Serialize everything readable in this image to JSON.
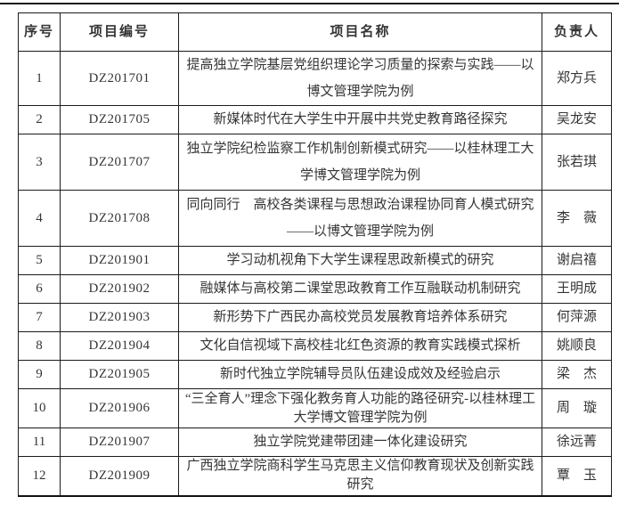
{
  "table": {
    "columns": {
      "no": "序号",
      "code": "项目编号",
      "title": "项目名称",
      "leader": "负责人"
    },
    "rows": [
      {
        "no": "1",
        "code": "DZ201701",
        "title": "提高独立学院基层党组织理论学习质量的探索与实践——以博文管理学院为例",
        "leader": "郑方兵"
      },
      {
        "no": "2",
        "code": "DZ201705",
        "title": "新媒体时代在大学生中开展中共党史教育路径探究",
        "leader": "吴龙安"
      },
      {
        "no": "3",
        "code": "DZ201707",
        "title": "独立学院纪检监察工作机制创新模式研究——以桂林理工大学博文管理学院为例",
        "leader": "张若琪"
      },
      {
        "no": "4",
        "code": "DZ201708",
        "title": "同向同行　高校各类课程与思想政治课程协同育人模式研究——以博文管理学院为例",
        "leader": "李　薇"
      },
      {
        "no": "5",
        "code": "DZ201901",
        "title": "学习动机视角下大学生课程思政新模式的研究",
        "leader": "谢启禧"
      },
      {
        "no": "6",
        "code": "DZ201902",
        "title": "融媒体与高校第二课堂思政教育工作互融联动机制研究",
        "leader": "王明成"
      },
      {
        "no": "7",
        "code": "DZ201903",
        "title": "新形势下广西民办高校党员发展教育培养体系研究",
        "leader": "何萍源"
      },
      {
        "no": "8",
        "code": "DZ201904",
        "title": "文化自信视域下高校桂北红色资源的教育实践模式探析",
        "leader": "姚顺良"
      },
      {
        "no": "9",
        "code": "DZ201905",
        "title": "新时代独立学院辅导员队伍建设成效及经验启示",
        "leader": "梁　杰"
      },
      {
        "no": "10",
        "code": "DZ201906",
        "title": "“三全育人”理念下强化教务育人功能的路径研究-以桂林理工大学博文管理学院为例",
        "leader": "周　璇"
      },
      {
        "no": "11",
        "code": "DZ201907",
        "title": "独立学院党建带团建一体化建设研究",
        "leader": "徐远菁"
      },
      {
        "no": "12",
        "code": "DZ201909",
        "title": "广西独立学院商科学生马克思主义信仰教育现状及创新实践研究",
        "leader": "覃　玉"
      }
    ]
  },
  "colors": {
    "text": "#353535",
    "border": "#1b1b1b",
    "background": "#ffffff"
  }
}
